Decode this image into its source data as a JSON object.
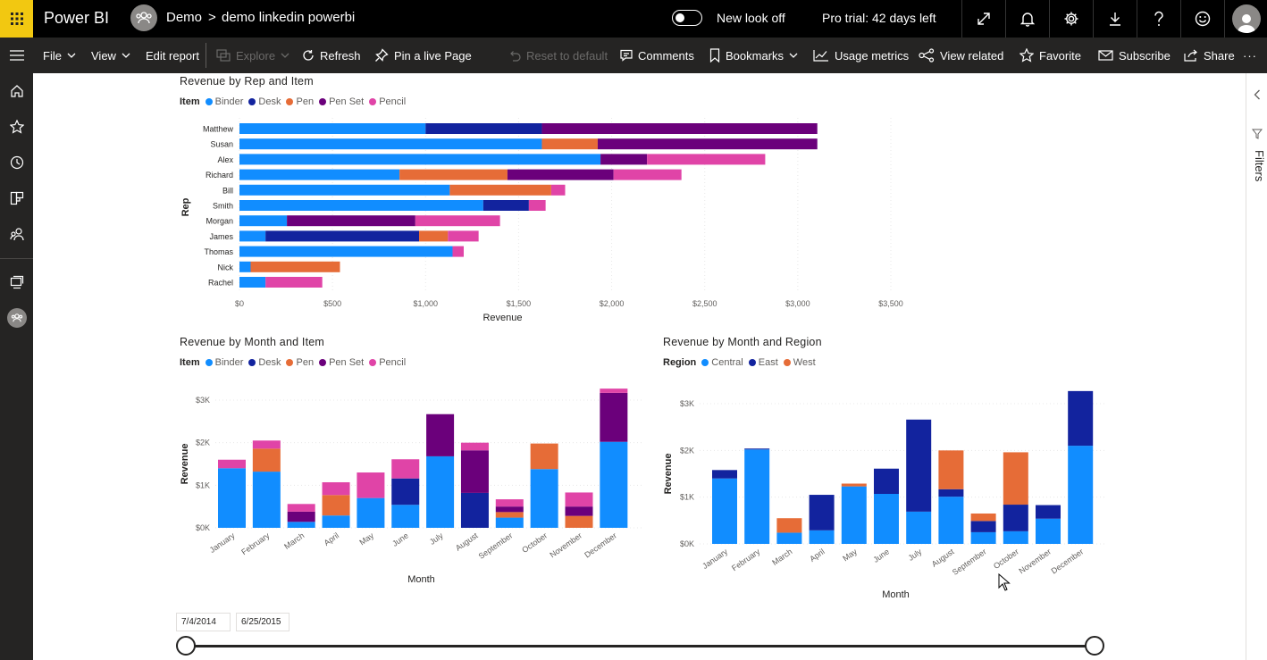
{
  "app": {
    "title": "Power BI"
  },
  "breadcrumb": {
    "workspace": "Demo",
    "separator": ">",
    "report": "demo linkedin powerbi"
  },
  "header": {
    "new_look_label": "New look off",
    "trial_label": "Pro trial: 42 days left"
  },
  "toolbar": {
    "file": "File",
    "view": "View",
    "edit_report": "Edit report",
    "explore": "Explore",
    "refresh": "Refresh",
    "pin_live_page": "Pin a live Page",
    "reset_default": "Reset to default",
    "comments": "Comments",
    "bookmarks": "Bookmarks",
    "usage_metrics": "Usage metrics",
    "view_related": "View related",
    "favorite": "Favorite",
    "subscribe": "Subscribe",
    "share": "Share",
    "more": "···"
  },
  "filters_pane": {
    "label": "Filters"
  },
  "colors": {
    "binder": "#118dff",
    "desk": "#12239e",
    "pen": "#e66c37",
    "pen_set": "#6b007b",
    "pencil": "#e044a7",
    "central": "#118dff",
    "east": "#12239e",
    "west": "#e66c37",
    "brand": "#f2c811"
  },
  "slicer": {
    "start": "7/4/2014",
    "end": "6/25/2015"
  },
  "chart_data": [
    {
      "type": "bar",
      "orientation": "horizontal-stacked",
      "title": "Revenue by Rep and Item",
      "legend_title": "Item",
      "legend_position": "top-left",
      "xlabel": "Revenue",
      "ylabel": "Rep",
      "xlim": [
        0,
        3500
      ],
      "x_ticks": [
        "$0",
        "$500",
        "$1,000",
        "$1,500",
        "$2,000",
        "$2,500",
        "$3,000",
        "$3,500"
      ],
      "grid": true,
      "categories": [
        "Matthew",
        "Susan",
        "Alex",
        "Richard",
        "Bill",
        "Smith",
        "Morgan",
        "James",
        "Thomas",
        "Nick",
        "Rachel"
      ],
      "series": [
        {
          "name": "Binder",
          "values": [
            1000,
            1625,
            1940,
            860,
            1130,
            1310,
            255,
            140,
            1145,
            60,
            140
          ]
        },
        {
          "name": "Desk",
          "values": [
            625,
            0,
            0,
            0,
            0,
            245,
            0,
            825,
            0,
            0,
            0
          ]
        },
        {
          "name": "Pen",
          "values": [
            0,
            300,
            0,
            580,
            545,
            0,
            0,
            155,
            0,
            480,
            0
          ]
        },
        {
          "name": "Pen Set",
          "values": [
            1480,
            1180,
            250,
            570,
            0,
            0,
            690,
            0,
            0,
            0,
            0
          ]
        },
        {
          "name": "Pencil",
          "values": [
            0,
            0,
            635,
            365,
            75,
            90,
            455,
            165,
            60,
            0,
            305
          ]
        }
      ]
    },
    {
      "type": "bar",
      "orientation": "vertical-stacked",
      "title": "Revenue by Month and Item",
      "legend_title": "Item",
      "legend_position": "top-left",
      "xlabel": "Month",
      "ylabel": "Revenue",
      "ylim": [
        0,
        3000
      ],
      "y_ticks": [
        "$0K",
        "$1K",
        "$2K",
        "$3K"
      ],
      "grid": true,
      "categories": [
        "January",
        "February",
        "March",
        "April",
        "May",
        "June",
        "July",
        "August",
        "September",
        "October",
        "November",
        "December"
      ],
      "series": [
        {
          "name": "Binder",
          "values": [
            1400,
            1320,
            140,
            290,
            700,
            540,
            1680,
            0,
            240,
            1380,
            0,
            2020
          ]
        },
        {
          "name": "Desk",
          "values": [
            0,
            0,
            0,
            0,
            0,
            620,
            0,
            820,
            0,
            0,
            0,
            0
          ]
        },
        {
          "name": "Pen",
          "values": [
            0,
            540,
            0,
            480,
            0,
            0,
            0,
            0,
            130,
            600,
            280,
            0
          ]
        },
        {
          "name": "Pen Set",
          "values": [
            0,
            0,
            240,
            0,
            0,
            0,
            990,
            1000,
            130,
            0,
            220,
            1150
          ]
        },
        {
          "name": "Pencil",
          "values": [
            200,
            190,
            180,
            300,
            600,
            450,
            0,
            180,
            170,
            0,
            330,
            100
          ]
        }
      ]
    },
    {
      "type": "bar",
      "orientation": "vertical-stacked",
      "title": "Revenue by Month and Region",
      "legend_title": "Region",
      "legend_position": "top-left",
      "xlabel": "Month",
      "ylabel": "Revenue",
      "ylim": [
        0,
        3000
      ],
      "y_ticks": [
        "$0K",
        "$1K",
        "$2K",
        "$3K"
      ],
      "grid": true,
      "categories": [
        "January",
        "February",
        "March",
        "April",
        "May",
        "June",
        "July",
        "August",
        "September",
        "October",
        "November",
        "December"
      ],
      "series": [
        {
          "name": "Central",
          "values": [
            1400,
            2020,
            240,
            290,
            1230,
            1070,
            690,
            1010,
            250,
            270,
            540,
            2100
          ]
        },
        {
          "name": "East",
          "values": [
            180,
            20,
            0,
            760,
            0,
            540,
            1970,
            160,
            240,
            570,
            290,
            1170
          ]
        },
        {
          "name": "West",
          "values": [
            0,
            0,
            310,
            0,
            60,
            0,
            0,
            830,
            160,
            1120,
            0,
            0
          ]
        }
      ]
    }
  ]
}
